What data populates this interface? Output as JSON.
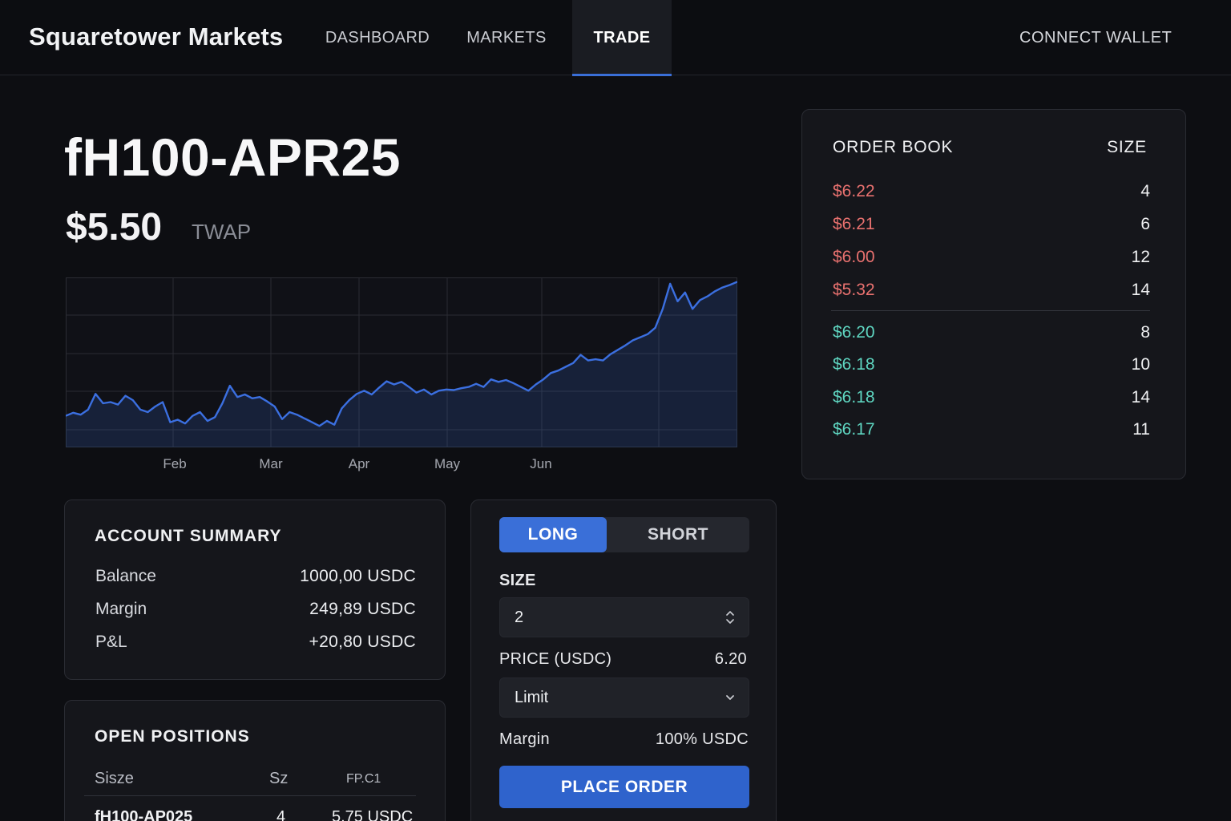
{
  "header": {
    "brand": "Squaretower Markets",
    "nav": [
      {
        "label": "DASHBOARD",
        "active": false
      },
      {
        "label": "MARKETS",
        "active": false
      },
      {
        "label": "TRADE",
        "active": true
      }
    ],
    "connect_label": "CONNECT WALLET"
  },
  "instrument": {
    "symbol": "fH100-APR25",
    "price": "$5.50",
    "price_label": "TWAP"
  },
  "chart_data": {
    "type": "area",
    "x_ticks": [
      "Feb",
      "Mar",
      "Apr",
      "May",
      "Jun"
    ],
    "title": "",
    "xlabel": "",
    "ylabel": "",
    "grid": true,
    "series": [
      {
        "values": [
          4.8,
          4.85,
          4.82,
          4.9,
          5.15,
          5.0,
          5.02,
          4.98,
          5.12,
          5.05,
          4.9,
          4.86,
          4.95,
          5.02,
          4.7,
          4.74,
          4.68,
          4.8,
          4.86,
          4.72,
          4.78,
          5.0,
          5.28,
          5.1,
          5.14,
          5.08,
          5.1,
          5.03,
          4.95,
          4.75,
          4.86,
          4.82,
          4.76,
          4.7,
          4.64,
          4.72,
          4.66,
          4.92,
          5.05,
          5.15,
          5.2,
          5.14,
          5.25,
          5.35,
          5.3,
          5.34,
          5.26,
          5.17,
          5.22,
          5.14,
          5.2,
          5.22,
          5.21,
          5.24,
          5.26,
          5.31,
          5.26,
          5.38,
          5.34,
          5.37,
          5.32,
          5.26,
          5.2,
          5.3,
          5.38,
          5.48,
          5.52,
          5.58,
          5.64,
          5.77,
          5.68,
          5.7,
          5.68,
          5.78,
          5.85,
          5.92,
          6.0,
          6.05,
          6.1,
          6.2,
          6.5,
          6.9,
          6.62,
          6.76,
          6.5,
          6.64,
          6.7,
          6.78,
          6.84,
          6.88,
          6.93
        ]
      }
    ]
  },
  "order_book": {
    "title": "ORDER BOOK",
    "size_label": "SIZE",
    "asks": [
      {
        "price": "$6.22",
        "size": "4"
      },
      {
        "price": "$6.21",
        "size": "6"
      },
      {
        "price": "$6.00",
        "size": "12"
      },
      {
        "price": "$5.32",
        "size": "14"
      }
    ],
    "bids": [
      {
        "price": "$6.20",
        "size": "8"
      },
      {
        "price": "$6.18",
        "size": "10"
      },
      {
        "price": "$6.18",
        "size": "14"
      },
      {
        "price": "$6.17",
        "size": "11"
      }
    ]
  },
  "account": {
    "title": "ACCOUNT SUMMARY",
    "rows": [
      {
        "label": "Balance",
        "value": "1000,00 USDC"
      },
      {
        "label": "Margin",
        "value": "249,89 USDC"
      },
      {
        "label": "P&L",
        "value": "+20,80 USDC"
      }
    ]
  },
  "positions": {
    "title": "OPEN POSITIONS",
    "headers": [
      "Sisze",
      "Sz",
      "FP.C1"
    ],
    "rows": [
      {
        "symbol": "fH100-AP025",
        "size": "4",
        "value": "5.75 USDC"
      }
    ]
  },
  "trade": {
    "long_label": "LONG",
    "short_label": "SHORT",
    "size_label": "SIZE",
    "size_value": "2",
    "price_label": "PRICE (USDC)",
    "price_value": "6.20",
    "order_type": "Limit",
    "margin_label": "Margin",
    "margin_value": "100% USDC",
    "place_label": "PLACE ORDER"
  },
  "colors": {
    "accent": "#3a6fd8",
    "ask": "#e8716f",
    "bid": "#5fd6c1",
    "background": "#0d0e12"
  },
  "icons": {
    "stepper": "updown-chevron-icon",
    "select": "chevron-down-icon"
  }
}
